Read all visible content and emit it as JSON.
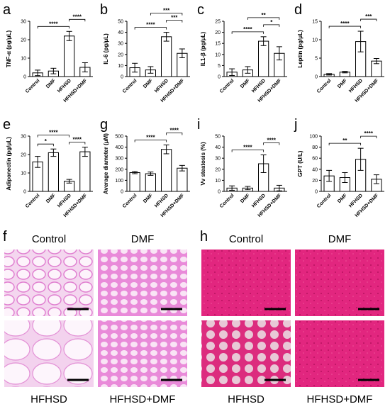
{
  "chart_data": [
    {
      "type": "bar",
      "panel": "a",
      "ylabel": "TNF-α (pg/μL)",
      "categories": [
        "Control",
        "DMF",
        "HFHSD",
        "HFHSD+DMF"
      ],
      "values": [
        2,
        3,
        22,
        5
      ],
      "errors": [
        1.5,
        1.5,
        2.5,
        2.5
      ],
      "color": "#ffffff",
      "ylim": [
        0,
        30
      ],
      "yticks": [
        0,
        10,
        20,
        30
      ],
      "comparisons": [
        {
          "pair": [
            0,
            2
          ],
          "label": "****"
        },
        {
          "pair": [
            2,
            3
          ],
          "label": "****"
        }
      ]
    },
    {
      "type": "bar",
      "panel": "b",
      "ylabel": "IL-6 (pg/μL)",
      "categories": [
        "Control",
        "DMF",
        "HFHSD",
        "HFHSD+DMF"
      ],
      "values": [
        8,
        6,
        36,
        21
      ],
      "errors": [
        4,
        3,
        4,
        4
      ],
      "color": "#ffffff",
      "ylim": [
        0,
        50
      ],
      "yticks": [
        0,
        10,
        20,
        30,
        40,
        50
      ],
      "comparisons": [
        {
          "pair": [
            0,
            2
          ],
          "label": "****"
        },
        {
          "pair": [
            2,
            3
          ],
          "label": "***"
        },
        {
          "pair": [
            1,
            3
          ],
          "label": "***"
        }
      ]
    },
    {
      "type": "bar",
      "panel": "c",
      "ylabel": "IL1-β (pg/μL)",
      "categories": [
        "Control",
        "DMF",
        "HFHSD",
        "HFHSD+DMF"
      ],
      "values": [
        2,
        3,
        16,
        10.5
      ],
      "errors": [
        1.5,
        1.5,
        2,
        3
      ],
      "color": "#ffffff",
      "ylim": [
        0,
        25
      ],
      "yticks": [
        0,
        5,
        10,
        15,
        20,
        25
      ],
      "comparisons": [
        {
          "pair": [
            0,
            2
          ],
          "label": "****"
        },
        {
          "pair": [
            2,
            3
          ],
          "label": "*"
        },
        {
          "pair": [
            1,
            3
          ],
          "label": "**"
        }
      ]
    },
    {
      "type": "bar",
      "panel": "d",
      "ylabel": "Leptin (pg/μL)",
      "categories": [
        "Control",
        "DMF",
        "HFHSD",
        "HFHSD+DMF"
      ],
      "values": [
        0.6,
        1.2,
        9.5,
        4.2
      ],
      "errors": [
        0.2,
        0.2,
        2.8,
        0.7
      ],
      "color": "#ffffff",
      "ylim": [
        0,
        15
      ],
      "yticks": [
        0,
        5,
        10,
        15
      ],
      "comparisons": [
        {
          "pair": [
            0,
            2
          ],
          "label": "****"
        },
        {
          "pair": [
            2,
            3
          ],
          "label": "***"
        }
      ]
    },
    {
      "type": "bar",
      "panel": "e",
      "ylabel": "Adiponectin (pg/μL)",
      "categories": [
        "Control",
        "DMF",
        "HFHSD",
        "HFHSD+DMF"
      ],
      "values": [
        16,
        21,
        5.5,
        21.5
      ],
      "errors": [
        3,
        2,
        1,
        2.5
      ],
      "color": "#ffffff",
      "ylim": [
        0,
        30
      ],
      "yticks": [
        0,
        10,
        20,
        30
      ],
      "comparisons": [
        {
          "pair": [
            0,
            1
          ],
          "label": "*"
        },
        {
          "pair": [
            2,
            3
          ],
          "label": "****"
        },
        {
          "pair": [
            0,
            2
          ],
          "label": "****"
        }
      ]
    },
    {
      "type": "bar",
      "panel": "g",
      "ylabel": "Average diameter (μM)",
      "categories": [
        "Control",
        "DMF",
        "HFHSD",
        "HFHSD+DMF"
      ],
      "values": [
        170,
        160,
        380,
        210
      ],
      "errors": [
        10,
        15,
        40,
        25
      ],
      "color": "#ffffff",
      "ylim": [
        0,
        500
      ],
      "yticks": [
        0,
        100,
        200,
        300,
        400,
        500
      ],
      "comparisons": [
        {
          "pair": [
            0,
            2
          ],
          "label": "****"
        },
        {
          "pair": [
            2,
            3
          ],
          "label": "****"
        }
      ]
    },
    {
      "type": "bar",
      "panel": "i",
      "ylabel": "Vv steatosis (%)",
      "categories": [
        "Control",
        "DMF",
        "HFHSD",
        "HFHSD+DMF"
      ],
      "values": [
        3,
        3,
        25,
        3
      ],
      "errors": [
        2,
        1.5,
        8,
        2.5
      ],
      "color": "#ffffff",
      "ylim": [
        0,
        50
      ],
      "yticks": [
        0,
        10,
        20,
        30,
        40,
        50
      ],
      "comparisons": [
        {
          "pair": [
            0,
            2
          ],
          "label": "****"
        },
        {
          "pair": [
            2,
            3
          ],
          "label": "****"
        }
      ]
    },
    {
      "type": "bar",
      "panel": "j",
      "ylabel": "GPT (U/L)",
      "categories": [
        "Control",
        "DMF",
        "HFHSD",
        "HFHSD+DMF"
      ],
      "values": [
        28,
        25,
        58,
        22
      ],
      "errors": [
        10,
        9,
        20,
        8
      ],
      "color": "#ffffff",
      "ylim": [
        0,
        100
      ],
      "yticks": [
        0,
        20,
        40,
        60,
        80,
        100
      ],
      "comparisons": [
        {
          "pair": [
            0,
            2
          ],
          "label": "**"
        },
        {
          "pair": [
            2,
            3
          ],
          "label": "****"
        }
      ]
    }
  ],
  "image_panels": [
    {
      "panel": "f",
      "labels": [
        "Control",
        "DMF",
        "HFHSD",
        "HFHSD+DMF"
      ]
    },
    {
      "panel": "h",
      "labels": [
        "Control",
        "DMF",
        "HFHSD",
        "HFHSD+DMF"
      ]
    }
  ]
}
